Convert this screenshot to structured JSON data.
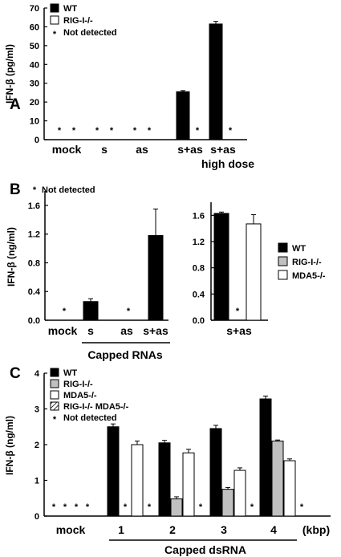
{
  "chart_data": [
    {
      "panel": "A",
      "type": "bar",
      "ylabel": "IFN-β (pg/ml)",
      "ylim": [
        0,
        70
      ],
      "yticks": [
        0,
        10,
        20,
        30,
        40,
        50,
        60,
        70
      ],
      "categories": [
        "mock",
        "s",
        "as",
        "s+as",
        "s+as high dose"
      ],
      "series": [
        {
          "name": "WT",
          "color": "#000000",
          "values": [
            null,
            null,
            null,
            25.5,
            61.5
          ],
          "errors": [
            0,
            0,
            0,
            0.6,
            1.4
          ]
        },
        {
          "name": "RIG-I-/-",
          "color": "#ffffff",
          "values": [
            null,
            null,
            null,
            null,
            null
          ],
          "errors": [
            0,
            0,
            0,
            0,
            0
          ]
        }
      ],
      "legend": {
        "entries": [
          "WT",
          "RIG-I-/-"
        ],
        "note": "Not detected",
        "position": "top-left"
      }
    },
    {
      "panel": "B",
      "type": "bar",
      "ylabel": "IFN-β (ng/ml)",
      "ylim": [
        0,
        1.8
      ],
      "yticks": [
        0,
        0.4,
        0.8,
        1.2,
        1.6
      ],
      "categories": [
        "mock",
        "s",
        "as",
        "s+as"
      ],
      "group_label": "Capped RNAs",
      "series": [
        {
          "name": "WT",
          "color": "#000000",
          "values": [
            null,
            0.26,
            null,
            1.18
          ],
          "errors": [
            0,
            0.04,
            0,
            0.37
          ]
        }
      ],
      "note": "Not detected"
    },
    {
      "panel": "B-right",
      "type": "bar",
      "ylim": [
        0,
        1.8
      ],
      "yticks": [
        0,
        0.4,
        0.8,
        1.2,
        1.6
      ],
      "categories": [
        "s+as"
      ],
      "series": [
        {
          "name": "WT",
          "color": "#000000",
          "values": [
            1.63
          ],
          "errors": [
            0.02
          ]
        },
        {
          "name": "RIG-I-/-",
          "color": "#c0c0c0",
          "values": [
            null
          ],
          "errors": [
            0
          ]
        },
        {
          "name": "MDA5-/-",
          "color": "#ffffff",
          "values": [
            1.47
          ],
          "errors": [
            0.14
          ]
        }
      ],
      "legend": {
        "entries": [
          "WT",
          "RIG-I-/-",
          "MDA5-/-"
        ],
        "position": "right"
      }
    },
    {
      "panel": "C",
      "type": "bar",
      "ylabel": "IFN-β (ng/ml)",
      "ylim": [
        0,
        4
      ],
      "yticks": [
        0,
        1,
        2,
        3,
        4
      ],
      "categories": [
        "mock",
        "1",
        "2",
        "3",
        "4"
      ],
      "unit_label": "(kbp)",
      "group_label": "Capped dsRNA",
      "series": [
        {
          "name": "WT",
          "color": "#000000",
          "values": [
            null,
            2.5,
            2.05,
            2.45,
            3.28
          ],
          "errors": [
            0,
            0.08,
            0.07,
            0.09,
            0.08
          ]
        },
        {
          "name": "RIG-I-/-",
          "color": "#c0c0c0",
          "values": [
            null,
            null,
            0.48,
            0.75,
            2.1
          ],
          "errors": [
            0,
            0,
            0.06,
            0.05,
            0.03
          ]
        },
        {
          "name": "MDA5-/-",
          "color": "#ffffff",
          "values": [
            null,
            2.0,
            1.77,
            1.28,
            1.55
          ],
          "errors": [
            0,
            0.1,
            0.1,
            0.07,
            0.05
          ]
        },
        {
          "name": "RIG-I-/- MDA5-/-",
          "color": "hatched",
          "values": [
            null,
            null,
            null,
            null,
            null
          ],
          "errors": [
            0,
            0,
            0,
            0,
            0
          ]
        }
      ],
      "legend": {
        "entries": [
          "WT",
          "RIG-I-/-",
          "MDA5-/-",
          "RIG-I-/- MDA5-/-"
        ],
        "note": "Not detected",
        "position": "top-left"
      }
    }
  ]
}
